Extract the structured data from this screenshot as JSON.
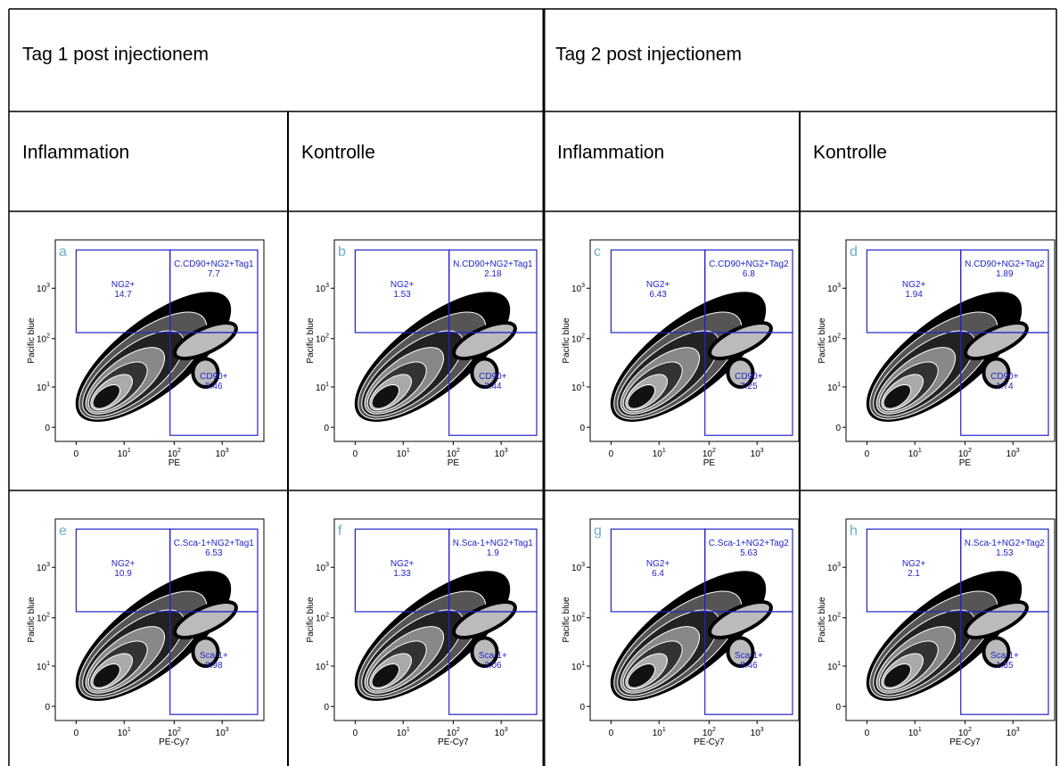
{
  "header": {
    "day1": "Tag 1 post injectionem",
    "day2": "Tag 2 post injectionem"
  },
  "columns": [
    "Inflammation",
    "Kontrolle",
    "Inflammation",
    "Kontrolle"
  ],
  "ticks": [
    {
      "base": "0"
    },
    {
      "base": "10",
      "exp": "1"
    },
    {
      "base": "10",
      "exp": "2"
    },
    {
      "base": "10",
      "exp": "3"
    }
  ],
  "panels": [
    {
      "letter": "a",
      "x_label": "PE",
      "y_label": "Pacific blue",
      "gates": [
        {
          "name": "NG2+",
          "value": 14.7
        },
        {
          "name": "C.CD90+NG2+Tag1",
          "value": 7.7
        },
        {
          "name": "CD90+",
          "value": 5.46
        }
      ]
    },
    {
      "letter": "b",
      "x_label": "PE",
      "y_label": "Pacific blue",
      "gates": [
        {
          "name": "NG2+",
          "value": 1.53
        },
        {
          "name": "N.CD90+NG2+Tag1",
          "value": 2.18
        },
        {
          "name": "CD90+",
          "value": 2.44
        }
      ]
    },
    {
      "letter": "c",
      "x_label": "PE",
      "y_label": "Pacific blue",
      "gates": [
        {
          "name": "NG2+",
          "value": 6.43
        },
        {
          "name": "C.CD90+NG2+Tag2",
          "value": 6.8
        },
        {
          "name": "CD90+",
          "value": 7.25
        }
      ]
    },
    {
      "letter": "d",
      "x_label": "PE",
      "y_label": "Pacific blue",
      "gates": [
        {
          "name": "NG2+",
          "value": 1.94
        },
        {
          "name": "N.CD90+NG2+Tag2",
          "value": 1.89
        },
        {
          "name": "CD90+",
          "value": 1.74
        }
      ]
    },
    {
      "letter": "e",
      "x_label": "PE-Cy7",
      "y_label": "Pacific blue",
      "gates": [
        {
          "name": "NG2+",
          "value": 10.9
        },
        {
          "name": "C.Sca-1+NG2+Tag1",
          "value": 6.53
        },
        {
          "name": "Sca-1+",
          "value": 8.98
        }
      ]
    },
    {
      "letter": "f",
      "x_label": "PE-Cy7",
      "y_label": "Pacific blue",
      "gates": [
        {
          "name": "NG2+",
          "value": 1.33
        },
        {
          "name": "N.Sca-1+NG2+Tag1",
          "value": 1.9
        },
        {
          "name": "Sca-1+",
          "value": 3.06
        }
      ]
    },
    {
      "letter": "g",
      "x_label": "PE-Cy7",
      "y_label": "Pacific blue",
      "gates": [
        {
          "name": "NG2+",
          "value": 6.4
        },
        {
          "name": "C.Sca-1+NG2+Tag2",
          "value": 5.63
        },
        {
          "name": "Sca-1+",
          "value": 8.46
        }
      ]
    },
    {
      "letter": "h",
      "x_label": "PE-Cy7",
      "y_label": "Pacific blue",
      "gates": [
        {
          "name": "NG2+",
          "value": 2.1
        },
        {
          "name": "N.Sca-1+NG2+Tag2",
          "value": 1.53
        },
        {
          "name": "Sca-1+",
          "value": 1.85
        }
      ]
    }
  ]
}
